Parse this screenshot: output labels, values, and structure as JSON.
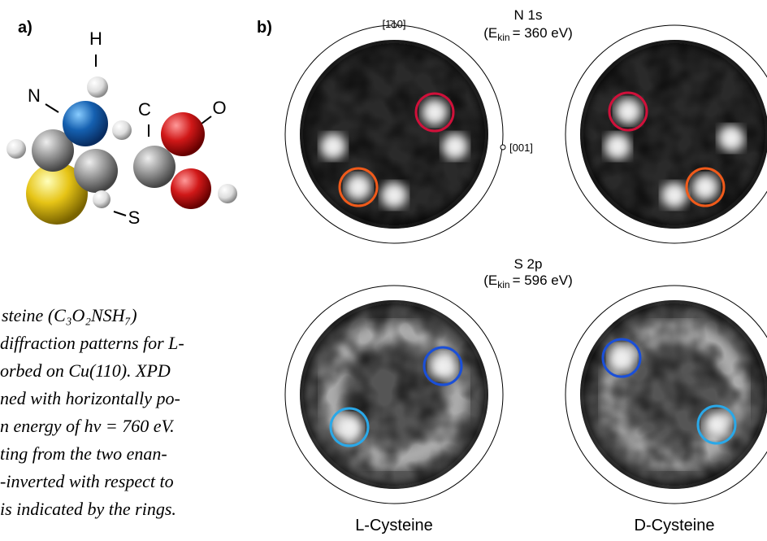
{
  "panels": {
    "a": "a)",
    "b": "b)"
  },
  "molecule": {
    "atoms": {
      "H": "H",
      "N": "N",
      "C": "C",
      "O": "O",
      "S": "S"
    }
  },
  "directions": {
    "top": "[1̄10]",
    "right": "[001]"
  },
  "rows": [
    {
      "title": "N 1s",
      "energy": [
        "(E",
        "kin",
        "= 360 eV)"
      ]
    },
    {
      "title": "S 2p",
      "energy": [
        "(E",
        "kin",
        "= 596 eV)"
      ]
    }
  ],
  "columns": [
    "L-Cysteine",
    "D-Cysteine"
  ],
  "caption": {
    "lines": [
      "steine (C₃O₂NSH₇)",
      "diffraction patterns for L-",
      "orbed on Cu(110).  XPD",
      "ned with horizontally po-",
      "n energy of hν = 760 eV.",
      "ting from the two enan-",
      "-inverted with respect to",
      "is indicated by the rings."
    ]
  }
}
